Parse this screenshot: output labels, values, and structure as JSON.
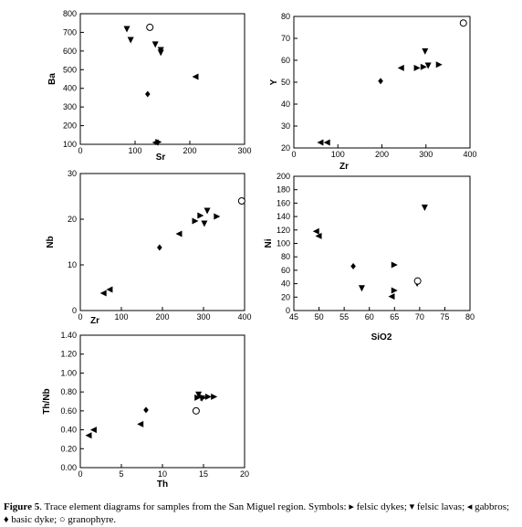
{
  "chart_data": [
    {
      "type": "scatter",
      "xlabel": "Sr",
      "ylabel": "Ba",
      "xlim": [
        0,
        300
      ],
      "ylim": [
        100,
        800
      ],
      "xticks": [
        0,
        100,
        200,
        300
      ],
      "yticks": [
        100,
        200,
        300,
        400,
        500,
        600,
        700,
        800
      ],
      "series": [
        {
          "marker": "right",
          "x": [
            143
          ],
          "values": [
            112
          ]
        },
        {
          "marker": "down",
          "x": [
            85,
            92,
            137,
            147,
            147
          ],
          "values": [
            717,
            658,
            634,
            604,
            590
          ]
        },
        {
          "marker": "left",
          "x": [
            137,
            210
          ],
          "values": [
            110,
            462
          ]
        },
        {
          "marker": "diamond",
          "x": [
            123
          ],
          "values": [
            369
          ]
        },
        {
          "marker": "circle",
          "x": [
            127
          ],
          "values": [
            727
          ]
        }
      ]
    },
    {
      "type": "scatter",
      "xlabel": "Zr",
      "ylabel": "Y",
      "xlim": [
        0,
        400
      ],
      "ylim": [
        20,
        80
      ],
      "xticks": [
        0,
        100,
        200,
        300,
        400
      ],
      "yticks": [
        20,
        30,
        40,
        50,
        60,
        70,
        80
      ],
      "series": [
        {
          "marker": "right",
          "x": [
            280,
            295,
            330
          ],
          "values": [
            56.5,
            57,
            58
          ]
        },
        {
          "marker": "down",
          "x": [
            305,
            298
          ],
          "values": [
            57.5,
            64
          ]
        },
        {
          "marker": "left",
          "x": [
            60,
            75,
            243
          ],
          "values": [
            22.5,
            22.5,
            56.5
          ]
        },
        {
          "marker": "diamond",
          "x": [
            197
          ],
          "values": [
            50.5
          ]
        },
        {
          "marker": "circle",
          "x": [
            385
          ],
          "values": [
            77
          ]
        }
      ]
    },
    {
      "type": "scatter",
      "xlabel": "Zr",
      "ylabel": "Nb",
      "xlim": [
        0,
        400
      ],
      "ylim": [
        0,
        30
      ],
      "xticks": [
        0,
        100,
        200,
        300,
        400
      ],
      "yticks": [
        0,
        10,
        20,
        30
      ],
      "series": [
        {
          "marker": "right",
          "x": [
            280,
            293,
            333
          ],
          "values": [
            19.6,
            20.8,
            20.6
          ]
        },
        {
          "marker": "down",
          "x": [
            302,
            309
          ],
          "values": [
            19,
            21.8
          ]
        },
        {
          "marker": "left",
          "x": [
            56,
            71,
            240
          ],
          "values": [
            3.8,
            4.6,
            16.8
          ]
        },
        {
          "marker": "diamond",
          "x": [
            193
          ],
          "values": [
            13.8
          ]
        },
        {
          "marker": "circle",
          "x": [
            393
          ],
          "values": [
            24
          ]
        }
      ]
    },
    {
      "type": "scatter",
      "xlabel": "SiO2",
      "ylabel": "Ni",
      "xlim": [
        45,
        80
      ],
      "ylim": [
        0,
        200
      ],
      "xticks": [
        45,
        50,
        55,
        60,
        65,
        70,
        75,
        80
      ],
      "yticks": [
        0,
        20,
        40,
        60,
        80,
        100,
        120,
        140,
        160,
        180,
        200
      ],
      "series": [
        {
          "marker": "right",
          "x": [
            65,
            65
          ],
          "values": [
            30,
            68
          ]
        },
        {
          "marker": "down",
          "x": [
            58.5,
            69.5,
            71
          ],
          "values": [
            33,
            40,
            153
          ]
        },
        {
          "marker": "left",
          "x": [
            49.4,
            49.9,
            64.4
          ],
          "values": [
            118,
            111,
            21
          ]
        },
        {
          "marker": "diamond",
          "x": [
            56.8
          ],
          "values": [
            66
          ]
        },
        {
          "marker": "circle",
          "x": [
            69.6
          ],
          "values": [
            44
          ]
        }
      ]
    },
    {
      "type": "scatter",
      "xlabel": "Th",
      "ylabel": "Th/Nb",
      "xlim": [
        0,
        20
      ],
      "ylim": [
        0,
        1.4
      ],
      "xticks": [
        0,
        5,
        10,
        15,
        20
      ],
      "yticks": [
        {
          "value": 0,
          "label": "0.00"
        },
        {
          "value": 0.2,
          "label": "0.20"
        },
        {
          "value": 0.4,
          "label": "0.40"
        },
        {
          "value": 0.6,
          "label": "0.60"
        },
        {
          "value": 0.8,
          "label": "0.80"
        },
        {
          "value": 1,
          "label": "1.00"
        },
        {
          "value": 1.2,
          "label": "1.20"
        },
        {
          "value": 1.4,
          "label": "1.40"
        }
      ],
      "series": [
        {
          "marker": "right",
          "x": [
            14.3,
            15,
            15.6,
            16.3
          ],
          "values": [
            0.74,
            0.74,
            0.75,
            0.75
          ]
        },
        {
          "marker": "down",
          "x": [
            14.4,
            14.8
          ],
          "values": [
            0.77,
            0.73
          ]
        },
        {
          "marker": "left",
          "x": [
            1,
            1.6,
            7.3
          ],
          "values": [
            0.34,
            0.4,
            0.46
          ]
        },
        {
          "marker": "diamond",
          "x": [
            8
          ],
          "values": [
            0.61
          ]
        },
        {
          "marker": "circle",
          "x": [
            14.1
          ],
          "values": [
            0.6
          ]
        }
      ]
    }
  ],
  "caption": {
    "label": "Figure 5",
    "text": ". Trace element diagrams for samples from the San Miguel region. Symbols: ▸ felsic dykes; ▾ felsic lavas; ◂ gabbros; ♦ basic dyke; ○ granophyre."
  }
}
